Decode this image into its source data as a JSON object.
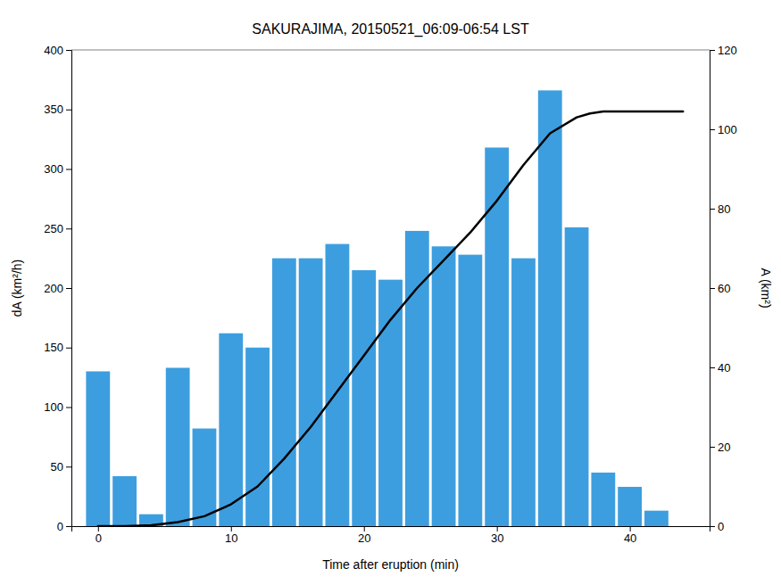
{
  "chart_data": {
    "type": "bar",
    "title": "SAKURAJIMA, 20150521_06:09-06:54 LST",
    "x_label": "Time after eruption (min)",
    "y_label": "dA (km²/h)",
    "y2_label": "A (km²)",
    "series": [
      {
        "type": "bar",
        "color": "#3d9edf",
        "x": [
          0,
          2,
          4,
          6,
          8,
          10,
          12,
          14,
          16,
          18,
          20,
          22,
          24,
          26,
          28,
          30,
          32,
          34,
          36,
          38,
          40,
          42,
          44
        ],
        "values": [
          130,
          42,
          10,
          133,
          82,
          162,
          150,
          225,
          225,
          237,
          215,
          207,
          248,
          235,
          228,
          318,
          225,
          366,
          251,
          45,
          33,
          13,
          0
        ]
      },
      {
        "type": "line",
        "color": "#000000",
        "axis": "y2",
        "x": [
          0,
          2,
          4,
          6,
          8,
          10,
          12,
          14,
          16,
          18,
          20,
          22,
          24,
          26,
          28,
          30,
          32,
          34,
          36,
          37,
          38,
          40,
          42,
          44
        ],
        "values": [
          0,
          0,
          0.2,
          1.0,
          2.5,
          5.5,
          10,
          17,
          25,
          34,
          43,
          52,
          60,
          67,
          74,
          82,
          91,
          99,
          103,
          104,
          104.5,
          104.5,
          104.5,
          104.5
        ]
      }
    ],
    "xlim": [
      -2,
      46
    ],
    "xticks": [
      0,
      10,
      20,
      30,
      40
    ],
    "ylim": [
      0,
      400
    ],
    "yticks": [
      0,
      50,
      100,
      150,
      200,
      250,
      300,
      350,
      400
    ],
    "y2lim": [
      0,
      120
    ],
    "y2ticks": [
      0,
      20,
      40,
      60,
      80,
      100,
      120
    ],
    "grid": false
  }
}
